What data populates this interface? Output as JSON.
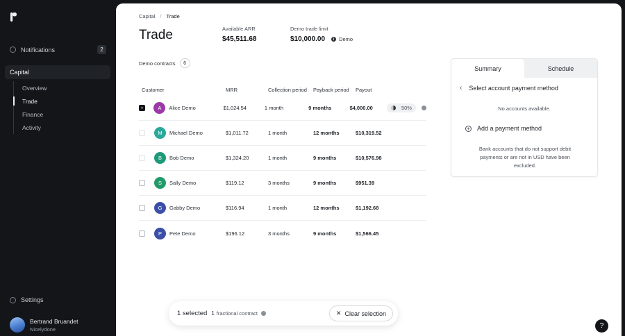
{
  "sidebar": {
    "notifications_label": "Notifications",
    "notifications_count": "2",
    "capital_label": "Capital",
    "subnav": [
      {
        "label": "Overview"
      },
      {
        "label": "Trade"
      },
      {
        "label": "Finance"
      },
      {
        "label": "Activity"
      }
    ],
    "settings_label": "Settings",
    "user": {
      "name": "Bertrand Bruandet",
      "org": "Nicelydone"
    }
  },
  "header": {
    "breadcrumb": [
      "Capital",
      "Trade"
    ],
    "breadcrumb_sep": "/",
    "title": "Trade",
    "available_arr_label": "Available ARR",
    "available_arr_value": "$45,511.68",
    "trade_limit_label": "Demo trade limit",
    "trade_limit_value": "$10,000.00",
    "trade_limit_tag": "Demo"
  },
  "contracts": {
    "label": "Demo contracts",
    "count": "6"
  },
  "table": {
    "columns": [
      "Customer",
      "MRR",
      "Collection period",
      "Payback period",
      "Payout"
    ],
    "rows": [
      {
        "initial": "A",
        "name": "Alice Demo",
        "mrr": "$1,024.54",
        "collection": "1 month",
        "payback": "9 months",
        "payout": "$4,000.00",
        "pct": "50%",
        "color": "#9b3aa6"
      },
      {
        "initial": "M",
        "name": "Michael Demo",
        "mrr": "$1,011.72",
        "collection": "1 month",
        "payback": "12 months",
        "payout": "$10,319.52",
        "color": "#2aa89a"
      },
      {
        "initial": "B",
        "name": "Bob Demo",
        "mrr": "$1,324.20",
        "collection": "1 month",
        "payback": "9 months",
        "payout": "$10,576.98",
        "color": "#1e9a78"
      },
      {
        "initial": "S",
        "name": "Sally Demo",
        "mrr": "$119.12",
        "collection": "3 months",
        "payback": "9 months",
        "payout": "$951.39",
        "color": "#229a6a"
      },
      {
        "initial": "G",
        "name": "Gabby Demo",
        "mrr": "$116.94",
        "collection": "1 month",
        "payback": "12 months",
        "payout": "$1,192.68",
        "color": "#3b4fa8"
      },
      {
        "initial": "P",
        "name": "Pete Demo",
        "mrr": "$196.12",
        "collection": "3 months",
        "payback": "9 months",
        "payout": "$1,566.45",
        "color": "#3b4fa8"
      }
    ]
  },
  "summary": {
    "tabs": [
      "Summary",
      "Schedule"
    ],
    "select_method": "Select account payment method",
    "no_accounts": "No accounts available.",
    "add_method": "Add a payment method",
    "note": "Bank accounts that do not support debit payments or are not in USD have been excluded."
  },
  "selection_bar": {
    "selected": "1 selected",
    "fractional_count": "1",
    "fractional_label": "fractional contract",
    "clear_label": "Clear selection"
  },
  "help_label": "?"
}
